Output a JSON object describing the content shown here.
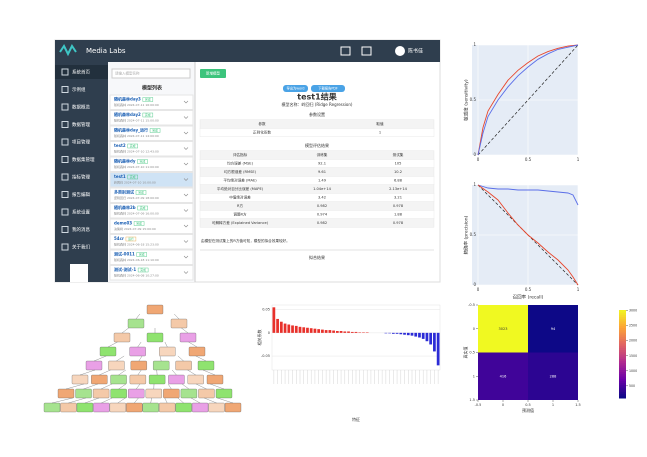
{
  "app": {
    "brand": "Media Labs",
    "user": "陈书佳",
    "menu": [
      "系统首页",
      "示例组",
      "数据概览",
      "数据管理",
      "项目管理",
      "数据集管理",
      "指标管理",
      "报告编辑",
      "系统设置",
      "我的消息",
      "关于我们"
    ],
    "search_placeholder": "请输入模型名称",
    "add_button": "新增模型",
    "list_title": "模型列表",
    "models": [
      {
        "name": "随机森林day3",
        "tag": "完成",
        "meta": "随机森林 2024-07-11 16:00:00"
      },
      {
        "name": "随机森林day2",
        "tag": "完成",
        "meta": "随机森林 2024-07-11 15:00:00"
      },
      {
        "name": "随机森林day_运行",
        "tag": "完成",
        "meta": "随机森林 2024-07-11 14:00:00"
      },
      {
        "name": "test2",
        "tag": "完成",
        "meta": "随机森林 2024-07-10 12:43:00"
      },
      {
        "name": "随机森林dy",
        "tag": "完成",
        "meta": "随机森林 2024-07-10 11:00:00"
      },
      {
        "name": "test1",
        "tag": "完成",
        "meta": "岭回归 2024-07-10 10:00:00"
      },
      {
        "name": "多类别测试",
        "tag": "完成",
        "meta": "逻辑回归 2024-07-09 18:00:00"
      },
      {
        "name": "随机森林2b",
        "tag": "完成",
        "meta": "随机森林 2024-07-09 16:00:00"
      },
      {
        "name": "demo03",
        "tag": "完成",
        "meta": "决策树 2024-07-09 15:00:00"
      },
      {
        "name": "54cr",
        "tag": "运行",
        "meta": "随机森林 2024-06-18 15:23:00"
      },
      {
        "name": "测试-0011",
        "tag": "完成",
        "meta": "随机森林 2024-06-18 11:10:00"
      },
      {
        "name": "测试-测试-1",
        "tag": "完成",
        "meta": "随机森林 2024-06-08 10:27:00"
      }
    ],
    "selected": 5,
    "export_buttons": [
      "导出为word",
      "下载报告PDF"
    ],
    "result_title": "test1结果",
    "model_name": "模型名称：岭回归 (Ridge Regression)",
    "params": {
      "title": "参数设置",
      "header": [
        "参数",
        "取值"
      ],
      "rows": [
        [
          "正则化系数",
          1
        ]
      ]
    },
    "metrics": {
      "title": "模型评估结果",
      "header": [
        "评估指标",
        "训练集",
        "测试集"
      ],
      "rows": [
        [
          "均方误差 (MSE)",
          92.1,
          105
        ],
        [
          "均方根误差 (RMSE)",
          9.61,
          10.2
        ],
        [
          "平均绝对误差 (MAE)",
          1.49,
          6.88
        ],
        [
          "平均绝对百分比误差 (MAPE)",
          "1.04e+14",
          "2.13e+14"
        ],
        [
          "中值绝对误差",
          3.42,
          3.21
        ],
        [
          "R方",
          0.982,
          0.978
        ],
        [
          "调整R方",
          0.974,
          1.88
        ],
        [
          "可解释方差 (Explained Variance)",
          0.982,
          0.978
        ]
      ]
    },
    "note": "由模型在测试集上的R方值可知，模型的拟合效果较好。",
    "fit_title": "拟合结果"
  },
  "roc": {
    "type": "line",
    "ylabel": "敏感度 (sensitivity)",
    "xlim": [
      0,
      1
    ],
    "ylim": [
      0,
      1
    ],
    "xticks": [
      0,
      0.5,
      1
    ],
    "yticks": [
      0,
      0.5,
      1
    ],
    "x": [
      0,
      0.05,
      0.1,
      0.2,
      0.3,
      0.4,
      0.5,
      0.6,
      0.7,
      0.8,
      0.9,
      1
    ],
    "series": [
      {
        "color": "#e8462c",
        "values": [
          0,
          0.25,
          0.4,
          0.55,
          0.68,
          0.77,
          0.84,
          0.9,
          0.94,
          0.97,
          0.99,
          1
        ]
      },
      {
        "color": "#5a6ee8",
        "values": [
          0,
          0.2,
          0.35,
          0.5,
          0.62,
          0.72,
          0.8,
          0.87,
          0.92,
          0.96,
          0.98,
          1
        ]
      }
    ]
  },
  "pr": {
    "type": "line",
    "xlabel": "召回率 (recall)",
    "ylabel": "精确率 (precision)",
    "xlim": [
      0,
      1
    ],
    "ylim": [
      0,
      1
    ],
    "xticks": [
      0,
      0.5,
      1
    ],
    "yticks": [
      0,
      0.5,
      1
    ],
    "x": [
      0,
      0.1,
      0.2,
      0.3,
      0.4,
      0.5,
      0.6,
      0.7,
      0.8,
      0.9,
      0.95,
      1
    ],
    "series": [
      {
        "color": "#5a6ee8",
        "values": [
          1,
          0.97,
          0.96,
          0.96,
          0.95,
          0.95,
          0.95,
          0.94,
          0.93,
          0.92,
          0.9,
          0.8
        ]
      },
      {
        "color": "#e8462c",
        "values": [
          1,
          0.93,
          0.85,
          0.72,
          0.6,
          0.5,
          0.42,
          0.33,
          0.25,
          0.15,
          0.08,
          0
        ]
      }
    ]
  },
  "coef": {
    "type": "bar",
    "ylabel": "相关系数",
    "xlabel": "特征",
    "ylim": [
      -0.08,
      0.06
    ],
    "yticks": [
      -0.05,
      0,
      0.05
    ],
    "pos_color": "#e8302a",
    "neg_color": "#2b2bd6",
    "values": [
      0.055,
      0.03,
      0.024,
      0.02,
      0.018,
      0.016,
      0.015,
      0.013,
      0.012,
      0.011,
      0.01,
      0.009,
      0.008,
      0.007,
      0.006,
      0.006,
      0.005,
      0.004,
      0.004,
      0.003,
      0.003,
      0.002,
      0.002,
      0.001,
      0.001,
      0.001,
      0,
      0,
      0,
      0,
      -0.001,
      -0.001,
      -0.002,
      -0.002,
      -0.003,
      -0.004,
      -0.005,
      -0.006,
      -0.008,
      -0.01,
      -0.013,
      -0.018,
      -0.025,
      -0.04,
      -0.07
    ]
  },
  "confusion": {
    "type": "heatmap",
    "xlabel": "预测值",
    "ylabel": "真实值",
    "xlim": [
      -0.5,
      1.5
    ],
    "ylim": [
      -0.5,
      1.5
    ],
    "xticks": [
      -0.5,
      0,
      0.5,
      1,
      1.5
    ],
    "yticks": [
      -0.5,
      0,
      0.5,
      1,
      1.5
    ],
    "values": [
      [
        3023,
        94
      ],
      [
        416,
        288
      ]
    ],
    "zlim": [
      94,
      3023
    ],
    "colorbar_ticks": [
      500,
      1000,
      1500,
      2000,
      2500,
      3000
    ]
  }
}
